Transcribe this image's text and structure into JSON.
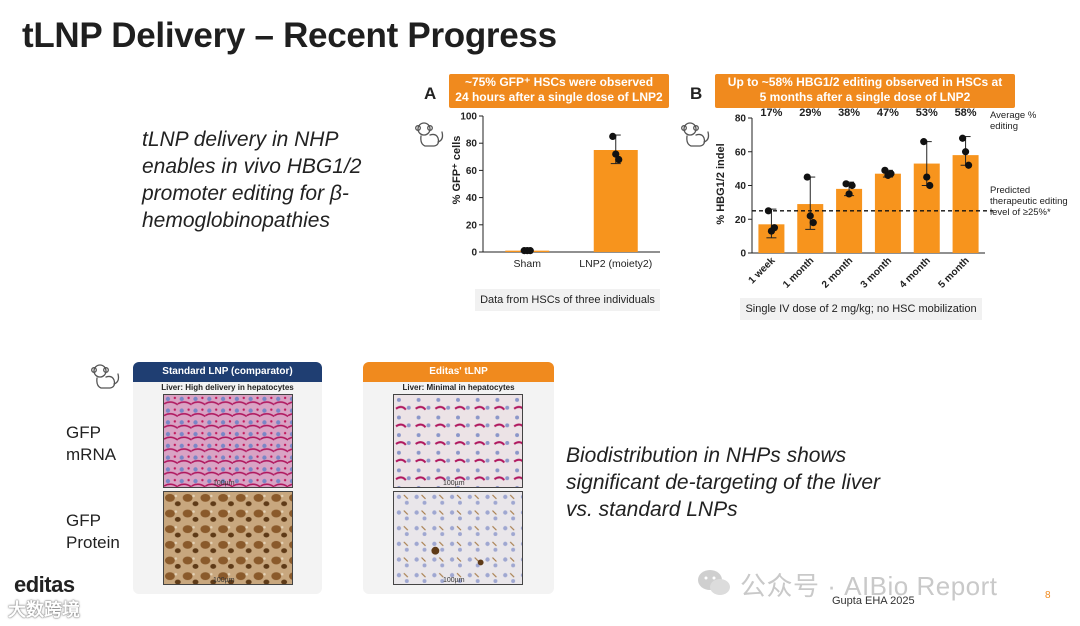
{
  "title": "tLNP Delivery – Recent Progress",
  "left_text": "tLNP delivery in NHP enables in vivo HBG1/2 promoter editing for β-hemoglobinopathies",
  "bio_text": "Biodistribution in NHPs shows significant de-targeting of the liver vs. standard LNPs",
  "panel_a": {
    "letter": "A",
    "banner_line1": "~75% GFP⁺ HSCs were observed",
    "banner_line2": "24 hours after a single dose of LNP2",
    "note": "Data from HSCs of three individuals"
  },
  "panel_b": {
    "letter": "B",
    "banner_line1": "Up to ~58% HBG1/2 editing observed in HSCs at",
    "banner_line2": "5 months after a single dose of LNP2",
    "note": "Single IV dose of 2 mg/kg; no HSC mobilization",
    "avg_note": "Average % editing",
    "pred_note": "Predicted therapeutic editing level of ≥25%*"
  },
  "chart_data": [
    {
      "type": "bar",
      "categories": [
        "Sham",
        "LNP2 (moiety2)"
      ],
      "values": [
        1,
        75
      ],
      "points": [
        [
          1,
          1,
          1
        ],
        [
          85,
          72,
          68
        ]
      ],
      "error": [
        [
          0.5,
          1.5
        ],
        [
          65,
          86
        ]
      ],
      "ylabel": "% GFP⁺ cells",
      "ylim": [
        0,
        100
      ],
      "yticks": [
        0,
        20,
        40,
        60,
        80,
        100
      ]
    },
    {
      "type": "bar",
      "categories": [
        "1 week",
        "1 month",
        "2 month",
        "3 month",
        "4 month",
        "5 month"
      ],
      "values": [
        17,
        29,
        38,
        47,
        53,
        58
      ],
      "value_labels": [
        "17%",
        "29%",
        "38%",
        "47%",
        "53%",
        "58%"
      ],
      "points": [
        [
          25,
          13,
          15
        ],
        [
          45,
          22,
          18
        ],
        [
          41,
          35,
          40
        ],
        [
          49,
          46,
          47
        ],
        [
          66,
          45,
          40
        ],
        [
          68,
          60,
          52
        ]
      ],
      "error": [
        [
          9,
          26
        ],
        [
          14,
          45
        ],
        [
          34,
          42
        ],
        [
          45,
          49
        ],
        [
          40,
          66
        ],
        [
          52,
          69
        ]
      ],
      "ylabel": "% HBG1/2 indel",
      "ylim": [
        0,
        80
      ],
      "yticks": [
        0,
        20,
        40,
        60,
        80
      ],
      "threshold": 25
    }
  ],
  "colors": {
    "accent": "#f08a1e",
    "navy": "#1f3e72",
    "bar": "#f7941d"
  },
  "biodistribution": {
    "standard_title": "Standard LNP (comparator)",
    "standard_sub": "Liver: High delivery in hepatocytes",
    "editas_title": "Editas' tLNP",
    "editas_sub": "Liver: Minimal in hepatocytes",
    "scale": "100µm",
    "row1": "GFP\nmRNA",
    "row2": "GFP\nProtein"
  },
  "footer": {
    "logo": "editas",
    "citation": "Gupta EHA 2025",
    "page": "8",
    "watermark_left": "大数跨境",
    "watermark_right": "公众号 · AIBio Report"
  },
  "icons": [
    "monkey-icon",
    "wechat-icon"
  ]
}
